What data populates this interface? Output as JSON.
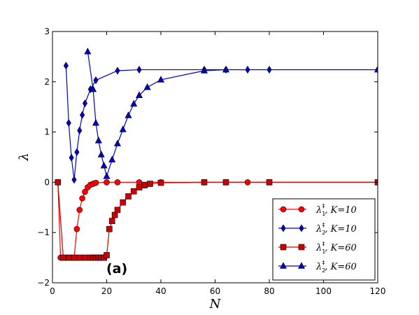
{
  "chart_data": {
    "type": "line",
    "xlabel": "N",
    "ylabel": "λ",
    "xlim": [
      0,
      120
    ],
    "ylim": [
      -2,
      3
    ],
    "xticks": [
      0,
      20,
      40,
      60,
      80,
      100,
      120
    ],
    "yticks": [
      -2,
      -1,
      0,
      1,
      2,
      3
    ],
    "xtick_labels": [
      "0",
      "20",
      "40",
      "60",
      "80",
      "100",
      "120"
    ],
    "ytick_labels": [
      "−2",
      "−1",
      "0",
      "1",
      "2",
      "3"
    ],
    "grid": false,
    "legend_position": "bottom-right",
    "annotation": "(a)",
    "series": [
      {
        "name": "λ1‡, K=10",
        "color": "#ff0000",
        "marker": "circle",
        "x": [
          2,
          3,
          4,
          5,
          6,
          7,
          8,
          9,
          10,
          11,
          12,
          13,
          14,
          15,
          16,
          20,
          24,
          32,
          40,
          56,
          64,
          72,
          80,
          120
        ],
        "y": [
          0.0,
          -1.5,
          -1.5,
          -1.5,
          -1.5,
          -1.5,
          -1.5,
          -0.93,
          -0.55,
          -0.32,
          -0.19,
          -0.1,
          -0.05,
          -0.03,
          -0.01,
          0.0,
          0.0,
          0.0,
          0.0,
          0.0,
          0.0,
          0.0,
          0.0,
          0.0
        ]
      },
      {
        "name": "λ2‡, K=10",
        "color": "#0000cc",
        "marker": "diamond",
        "x": [
          5,
          6,
          7,
          8,
          9,
          10,
          11,
          12,
          14,
          16,
          24,
          32,
          56,
          64,
          72,
          80,
          120
        ],
        "y": [
          2.32,
          1.18,
          0.49,
          0.05,
          0.6,
          1.03,
          1.34,
          1.57,
          1.85,
          2.03,
          2.22,
          2.24,
          2.24,
          2.24,
          2.24,
          2.24,
          2.24
        ]
      },
      {
        "name": "λ1‡, K=60",
        "color": "#cc0000",
        "marker": "square",
        "x": [
          2,
          4,
          6,
          8,
          10,
          12,
          14,
          15,
          16,
          17,
          18,
          19,
          20,
          21,
          22,
          23,
          24,
          26,
          28,
          30,
          32,
          34,
          36,
          40,
          56,
          64,
          80,
          120
        ],
        "y": [
          0.0,
          -1.5,
          -1.5,
          -1.5,
          -1.5,
          -1.5,
          -1.5,
          -1.5,
          -1.5,
          -1.5,
          -1.5,
          -1.5,
          -1.45,
          -0.93,
          -0.77,
          -0.65,
          -0.55,
          -0.4,
          -0.28,
          -0.18,
          -0.1,
          -0.06,
          -0.03,
          -0.01,
          0.0,
          0.0,
          0.0,
          0.0
        ]
      },
      {
        "name": "λ2‡, K=60",
        "color": "#0000cc",
        "marker": "triangle",
        "x": [
          13,
          15,
          16,
          17,
          18,
          19,
          20,
          22,
          24,
          26,
          28,
          30,
          32,
          35,
          40,
          56,
          64,
          120
        ],
        "y": [
          2.6,
          1.85,
          1.18,
          0.83,
          0.55,
          0.33,
          0.12,
          0.45,
          0.77,
          1.05,
          1.33,
          1.56,
          1.73,
          1.89,
          2.04,
          2.22,
          2.24,
          2.24
        ]
      }
    ]
  },
  "legend": [
    {
      "label_main": "λ",
      "label_sub": "1",
      "label_sup": "‡",
      "label_rest": ", K=10"
    },
    {
      "label_main": "λ",
      "label_sub": "2",
      "label_sup": "‡",
      "label_rest": ", K=10"
    },
    {
      "label_main": "λ",
      "label_sub": "1",
      "label_sup": "‡",
      "label_rest": ", K=60"
    },
    {
      "label_main": "λ",
      "label_sub": "2",
      "label_sup": "‡",
      "label_rest": ", K=60"
    }
  ]
}
